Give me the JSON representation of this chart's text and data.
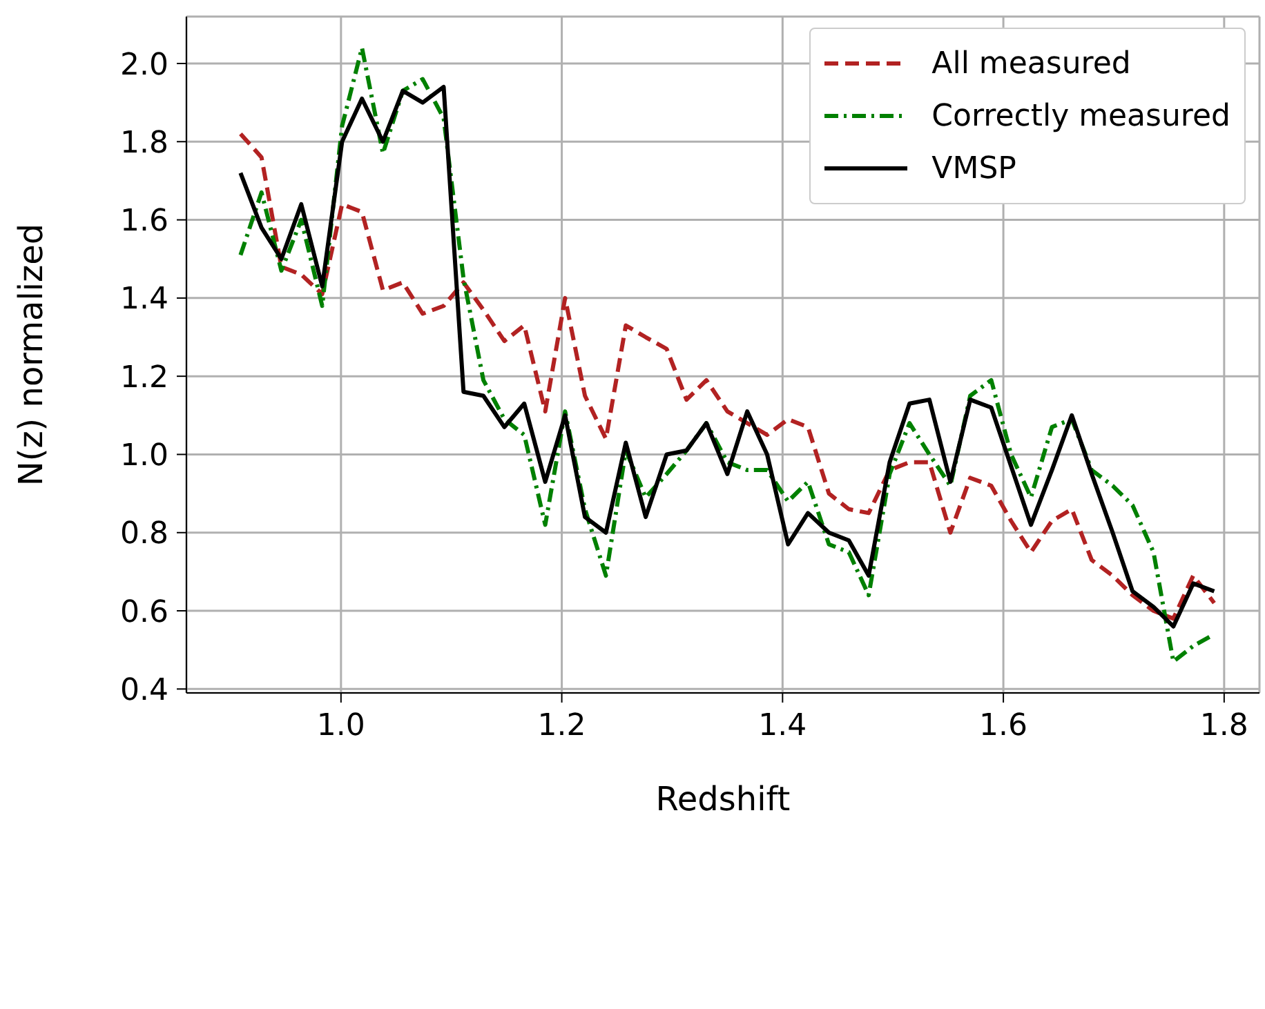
{
  "chart_data": {
    "type": "line",
    "xlabel": "Redshift",
    "ylabel": "N(z) normalized",
    "x": [
      0.909,
      0.928,
      0.946,
      0.964,
      0.983,
      1.001,
      1.019,
      1.038,
      1.056,
      1.074,
      1.093,
      1.111,
      1.129,
      1.148,
      1.166,
      1.185,
      1.203,
      1.221,
      1.24,
      1.258,
      1.276,
      1.295,
      1.313,
      1.331,
      1.35,
      1.368,
      1.386,
      1.405,
      1.423,
      1.442,
      1.46,
      1.478,
      1.497,
      1.515,
      1.533,
      1.552,
      1.57,
      1.589,
      1.607,
      1.625,
      1.644,
      1.662,
      1.68,
      1.699,
      1.717,
      1.736,
      1.754,
      1.772,
      1.791
    ],
    "series": [
      {
        "name": "All measured",
        "color": "#b22222",
        "line_style": "dashed",
        "values": [
          1.82,
          1.76,
          1.48,
          1.46,
          1.41,
          1.64,
          1.62,
          1.42,
          1.44,
          1.36,
          1.38,
          1.44,
          1.37,
          1.29,
          1.33,
          1.11,
          1.4,
          1.15,
          1.04,
          1.33,
          1.3,
          1.27,
          1.14,
          1.19,
          1.11,
          1.08,
          1.05,
          1.09,
          1.07,
          0.9,
          0.86,
          0.85,
          0.96,
          0.98,
          0.98,
          0.8,
          0.94,
          0.92,
          0.83,
          0.75,
          0.83,
          0.86,
          0.73,
          0.69,
          0.64,
          0.6,
          0.58,
          0.69,
          0.62
        ]
      },
      {
        "name": "Correctly measured",
        "color": "#008000",
        "line_style": "dashdot",
        "values": [
          1.51,
          1.67,
          1.47,
          1.6,
          1.38,
          1.84,
          2.04,
          1.77,
          1.93,
          1.96,
          1.86,
          1.45,
          1.19,
          1.09,
          1.05,
          0.82,
          1.11,
          0.86,
          0.69,
          1.01,
          0.89,
          0.95,
          1.01,
          1.08,
          0.98,
          0.96,
          0.96,
          0.88,
          0.93,
          0.77,
          0.75,
          0.64,
          0.95,
          1.08,
          1.0,
          0.92,
          1.15,
          1.19,
          1.0,
          0.89,
          1.07,
          1.09,
          0.96,
          0.92,
          0.87,
          0.75,
          0.47,
          0.51,
          0.54
        ]
      },
      {
        "name": "VMSP",
        "color": "#000000",
        "line_style": "solid",
        "values": [
          1.72,
          1.58,
          1.5,
          1.64,
          1.43,
          1.8,
          1.91,
          1.8,
          1.93,
          1.9,
          1.94,
          1.16,
          1.15,
          1.07,
          1.13,
          0.93,
          1.1,
          0.84,
          0.8,
          1.03,
          0.84,
          1.0,
          1.01,
          1.08,
          0.95,
          1.11,
          1.0,
          0.77,
          0.85,
          0.8,
          0.78,
          0.69,
          0.98,
          1.13,
          1.14,
          0.93,
          1.14,
          1.12,
          0.97,
          0.82,
          0.96,
          1.1,
          0.95,
          0.8,
          0.65,
          0.61,
          0.56,
          0.67,
          0.65
        ]
      }
    ],
    "xlim": [
      0.86,
      1.832
    ],
    "xticks": [
      {
        "value": 1,
        "label": "1.0"
      },
      1.2,
      1.4,
      1.6,
      1.8
    ],
    "ylim": [
      0.39,
      2.12
    ],
    "yticks": [
      0.4,
      0.6,
      0.8,
      {
        "value": 1,
        "label": "1.0"
      },
      1.2,
      1.4,
      1.6,
      1.8,
      {
        "value": 2,
        "label": "2.0"
      }
    ],
    "grid": true,
    "legend": "top right",
    "marker": "none"
  }
}
